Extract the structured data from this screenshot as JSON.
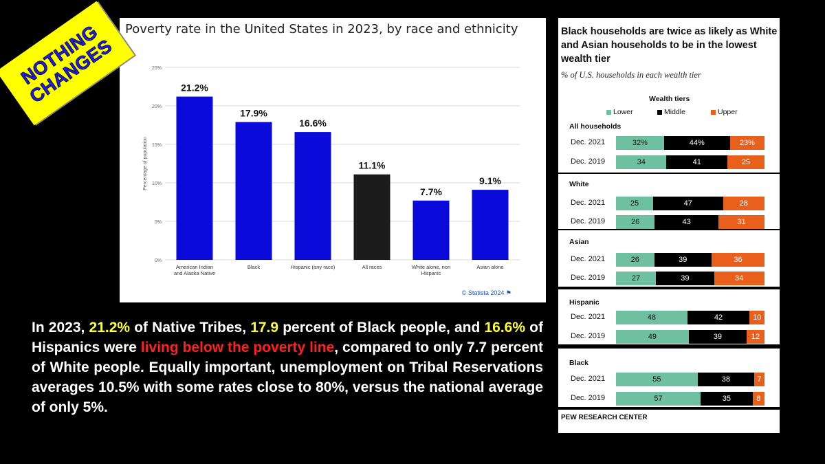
{
  "sticker": {
    "line1": "NOTHING",
    "line2": "CHANGES"
  },
  "chart_data": [
    {
      "type": "bar",
      "title": "Poverty rate in the United States in 2023, by race and ethnicity",
      "ylabel": "Percentage of population",
      "xlabel": "",
      "ylim": [
        0,
        25
      ],
      "yticks": [
        "0%",
        "5%",
        "10%",
        "15%",
        "20%",
        "25%"
      ],
      "ytick_values": [
        0,
        5,
        10,
        15,
        20,
        25
      ],
      "grid": true,
      "categories": [
        "American Indian and Alaska Native",
        "Black",
        "Hispanic (any race)",
        "All races",
        "White alone, non Hispanic",
        "Asian alone"
      ],
      "category_lines": [
        [
          "American Indian",
          "and Alaska Native"
        ],
        [
          "Black"
        ],
        [
          "Hispanic (any race)"
        ],
        [
          "All races"
        ],
        [
          "White alone, non",
          "Hispanic"
        ],
        [
          "Asian alone"
        ]
      ],
      "values": [
        21.2,
        17.9,
        16.6,
        11.1,
        7.7,
        9.1
      ],
      "value_labels": [
        "21.2%",
        "17.9%",
        "16.6%",
        "11.1%",
        "7.7%",
        "9.1%"
      ],
      "colors": [
        "#0a0adb",
        "#0a0adb",
        "#0a0adb",
        "#1c1c1c",
        "#0a0adb",
        "#0a0adb"
      ],
      "source": "© Statista 2024"
    },
    {
      "type": "bar",
      "orientation": "horizontal-stacked",
      "title": "Black households are twice as likely as White and Asian households to be in the lowest wealth tier",
      "subtitle": "% of U.S. households in each wealth tier",
      "legend_title": "Wealth tiers",
      "series_names": [
        "Lower",
        "Middle",
        "Upper"
      ],
      "series_colors": [
        "#6fc0a0",
        "#000000",
        "#e8601c"
      ],
      "groups": [
        {
          "name": "All households",
          "rows": [
            {
              "label": "Dec. 2021",
              "values": [
                32,
                44,
                23
              ],
              "labels": [
                "32%",
                "44%",
                "23%"
              ]
            },
            {
              "label": "Dec. 2019",
              "values": [
                34,
                41,
                25
              ],
              "labels": [
                "34",
                "41",
                "25"
              ]
            }
          ]
        },
        {
          "name": "White",
          "rows": [
            {
              "label": "Dec. 2021",
              "values": [
                25,
                47,
                28
              ],
              "labels": [
                "25",
                "47",
                "28"
              ]
            },
            {
              "label": "Dec. 2019",
              "values": [
                26,
                43,
                31
              ],
              "labels": [
                "26",
                "43",
                "31"
              ]
            }
          ]
        },
        {
          "name": "Asian",
          "rows": [
            {
              "label": "Dec. 2021",
              "values": [
                26,
                39,
                36
              ],
              "labels": [
                "26",
                "39",
                "36"
              ]
            },
            {
              "label": "Dec. 2019",
              "values": [
                27,
                39,
                34
              ],
              "labels": [
                "27",
                "39",
                "34"
              ]
            }
          ]
        },
        {
          "name": "Hispanic",
          "rows": [
            {
              "label": "Dec. 2021",
              "values": [
                48,
                42,
                10
              ],
              "labels": [
                "48",
                "42",
                "10"
              ]
            },
            {
              "label": "Dec. 2019",
              "values": [
                49,
                39,
                12
              ],
              "labels": [
                "49",
                "39",
                "12"
              ]
            }
          ]
        },
        {
          "name": "Black",
          "rows": [
            {
              "label": "Dec. 2021",
              "values": [
                55,
                38,
                7
              ],
              "labels": [
                "55",
                "38",
                "7"
              ]
            },
            {
              "label": "Dec. 2019",
              "values": [
                57,
                35,
                8
              ],
              "labels": [
                "57",
                "35",
                "8"
              ]
            }
          ]
        }
      ],
      "source": "PEW RESEARCH CENTER"
    }
  ],
  "caption": {
    "p1": "In 2023, ",
    "p2": "21.2%",
    "p3": " of Native Tribes, ",
    "p4": "17.9",
    "p5": " percent of Black people, and ",
    "p6": "16.6%",
    "p7": " of Hispanics were ",
    "p8": "living below the poverty line",
    "p9": ", compared to only 7.7 percent of White people. Equally important, unemployment on Tribal Reservations averages 10.5% with some rates close to 80%, versus the national average of only 5%."
  }
}
